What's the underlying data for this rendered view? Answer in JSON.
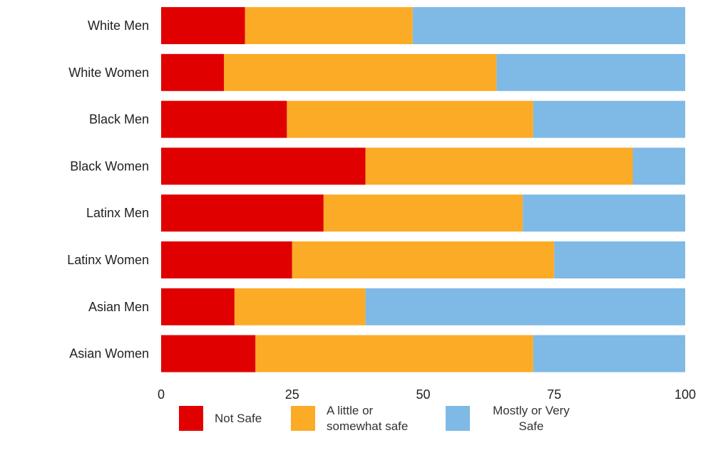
{
  "chart_data": {
    "type": "bar",
    "orientation": "horizontal",
    "stacked": true,
    "title": "",
    "xlabel": "",
    "ylabel": "",
    "xlim": [
      0,
      100
    ],
    "xticks": [
      "0",
      "25",
      "50",
      "75",
      "100"
    ],
    "categories": [
      "White Men",
      "White Women",
      "Black Men",
      "Black Women",
      "Latinx Men",
      "Latinx Women",
      "Asian Men",
      "Asian Women"
    ],
    "series": [
      {
        "name": "Not Safe",
        "color": "#e00000",
        "values": [
          16,
          12,
          24,
          39,
          31,
          25,
          14,
          18
        ]
      },
      {
        "name": "A little or somewhat safe",
        "color": "#fcab26",
        "values": [
          32,
          52,
          47,
          51,
          38,
          50,
          25,
          53
        ]
      },
      {
        "name": "Mostly or Very Safe",
        "color": "#7fb9e6",
        "values": [
          52,
          36,
          29,
          10,
          31,
          25,
          61,
          29
        ]
      }
    ],
    "legend_position": "bottom",
    "grid": false
  }
}
